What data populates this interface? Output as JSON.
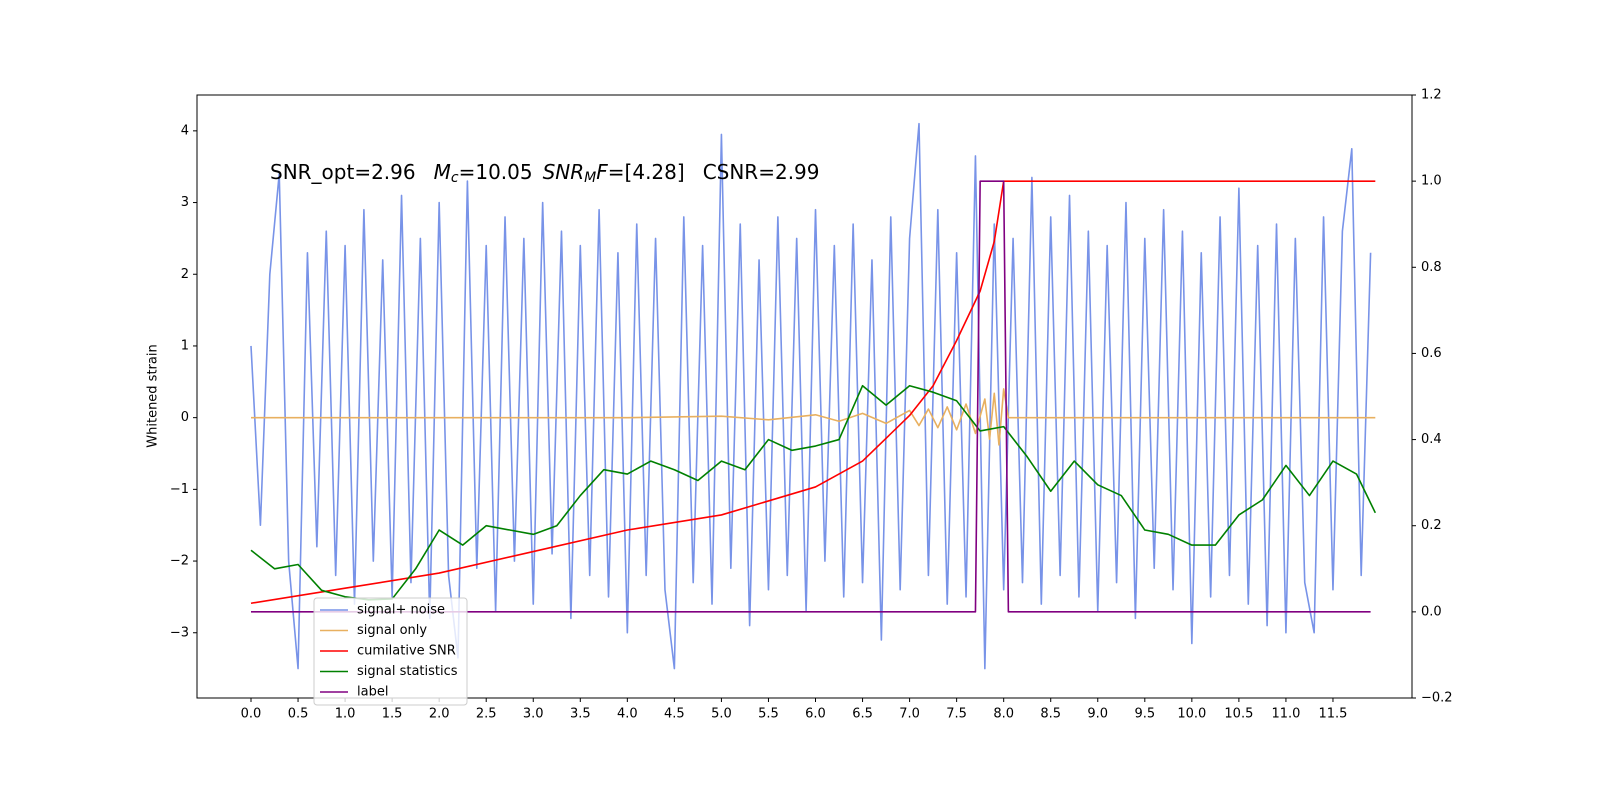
{
  "chart_data": {
    "type": "line",
    "annotation_parts": [
      "SNR_opt=2.96",
      "M",
      "c",
      "=10.05",
      "SNR",
      "M",
      "F",
      "=[4.28]",
      "CSNR=2.99"
    ],
    "ylabel": "Whitened strain",
    "xlim": [
      -0.574,
      12.34
    ],
    "xticks": [
      {
        "value": 0,
        "label": "0.0"
      },
      {
        "value": 0.5,
        "label": "0.5"
      },
      {
        "value": 1,
        "label": "1.0"
      },
      {
        "value": 1.5,
        "label": "1.5"
      },
      {
        "value": 2,
        "label": "2.0"
      },
      {
        "value": 2.5,
        "label": "2.5"
      },
      {
        "value": 3,
        "label": "3.0"
      },
      {
        "value": 3.5,
        "label": "3.5"
      },
      {
        "value": 4,
        "label": "4.0"
      },
      {
        "value": 4.5,
        "label": "4.5"
      },
      {
        "value": 5,
        "label": "5.0"
      },
      {
        "value": 5.5,
        "label": "5.5"
      },
      {
        "value": 6,
        "label": "6.0"
      },
      {
        "value": 6.5,
        "label": "6.5"
      },
      {
        "value": 7,
        "label": "7.0"
      },
      {
        "value": 7.5,
        "label": "7.5"
      },
      {
        "value": 8,
        "label": "8.0"
      },
      {
        "value": 8.5,
        "label": "8.5"
      },
      {
        "value": 9,
        "label": "9.0"
      },
      {
        "value": 9.5,
        "label": "9.5"
      },
      {
        "value": 10,
        "label": "10.0"
      },
      {
        "value": 10.5,
        "label": "10.5"
      },
      {
        "value": 11,
        "label": "11.0"
      },
      {
        "value": 11.5,
        "label": "11.5"
      }
    ],
    "ylim": [
      -3.91,
      4.5
    ],
    "yticks": [
      {
        "value": -3,
        "label": "−3"
      },
      {
        "value": -2,
        "label": "−2"
      },
      {
        "value": -1,
        "label": "−1"
      },
      0,
      1,
      2,
      3,
      4
    ],
    "y2lim": [
      -0.2,
      1.2
    ],
    "y2ticks": [
      {
        "value": -0.2,
        "label": "−0.2"
      },
      {
        "value": 0,
        "label": "0.0"
      },
      {
        "value": 0.2,
        "label": "0.2"
      },
      {
        "value": 0.4,
        "label": "0.4"
      },
      {
        "value": 0.6,
        "label": "0.6"
      },
      {
        "value": 0.8,
        "label": "0.8"
      },
      {
        "value": 1.0,
        "label": "1.0"
      },
      {
        "value": 1.2,
        "label": "1.2"
      }
    ],
    "legend": "lower left",
    "series": [
      {
        "name": "signal+ noise",
        "color": "#7893e8",
        "x": [
          0,
          0.1,
          0.2,
          0.3,
          0.4,
          0.5,
          0.6,
          0.7,
          0.8,
          0.9,
          1,
          1.1,
          1.2,
          1.3,
          1.4,
          1.5,
          1.6,
          1.7,
          1.8,
          1.9,
          2,
          2.1,
          2.2,
          2.3,
          2.4,
          2.5,
          2.6,
          2.7,
          2.8,
          2.9,
          3,
          3.1,
          3.2,
          3.3,
          3.4,
          3.5,
          3.6,
          3.7,
          3.8,
          3.9,
          4,
          4.1,
          4.2,
          4.3,
          4.4,
          4.5,
          4.6,
          4.7,
          4.8,
          4.9,
          5,
          5.1,
          5.2,
          5.3,
          5.4,
          5.5,
          5.6,
          5.7,
          5.8,
          5.9,
          6,
          6.1,
          6.2,
          6.3,
          6.4,
          6.5,
          6.6,
          6.7,
          6.8,
          6.9,
          7,
          7.1,
          7.2,
          7.3,
          7.4,
          7.5,
          7.6,
          7.7,
          7.8,
          7.9,
          8,
          8.1,
          8.2,
          8.3,
          8.4,
          8.5,
          8.6,
          8.7,
          8.8,
          8.9,
          9,
          9.1,
          9.2,
          9.3,
          9.4,
          9.5,
          9.6,
          9.7,
          9.8,
          9.9,
          10,
          10.1,
          10.2,
          10.3,
          10.4,
          10.5,
          10.6,
          10.7,
          10.8,
          10.9,
          11,
          11.1,
          11.2,
          11.3,
          11.4,
          11.5,
          11.6,
          11.7,
          11.8,
          11.9
        ],
        "values": [
          1.0,
          -1.5,
          2.0,
          3.4,
          -2.0,
          -3.5,
          2.3,
          -1.8,
          2.6,
          -2.2,
          2.4,
          -2.6,
          2.9,
          -2.0,
          2.2,
          -2.5,
          3.1,
          -2.3,
          2.5,
          -2.8,
          3.0,
          -2.2,
          -3.35,
          3.3,
          -2.1,
          2.4,
          -2.7,
          2.8,
          -2.0,
          2.5,
          -2.6,
          3.0,
          -1.9,
          2.6,
          -2.8,
          2.4,
          -2.2,
          2.9,
          -2.5,
          2.3,
          -3.0,
          2.7,
          -2.2,
          2.5,
          -2.4,
          -3.5,
          2.8,
          -2.3,
          2.4,
          -2.6,
          3.95,
          -2.1,
          2.7,
          -2.9,
          2.2,
          -2.4,
          2.8,
          -2.2,
          2.5,
          -2.7,
          2.9,
          -2.0,
          2.4,
          -2.5,
          2.7,
          -2.3,
          2.2,
          -3.1,
          2.8,
          -2.4,
          2.5,
          4.1,
          -2.2,
          2.9,
          -2.6,
          2.3,
          -2.5,
          3.65,
          -3.5,
          2.7,
          -2.4,
          2.5,
          -2.3,
          3.35,
          -2.6,
          2.8,
          -2.2,
          3.1,
          -2.5,
          2.6,
          -2.7,
          2.4,
          -2.3,
          3.0,
          -2.8,
          2.5,
          -2.1,
          2.9,
          -2.4,
          2.6,
          -3.15,
          2.3,
          -2.5,
          2.8,
          -2.2,
          3.2,
          -2.6,
          2.4,
          -2.9,
          2.7,
          -3.0,
          2.5,
          -2.3,
          -3.0,
          2.8,
          -2.4,
          2.6,
          3.75,
          -2.2,
          2.3
        ]
      },
      {
        "name": "signal only",
        "color": "#e8b060",
        "x": [
          0,
          1,
          2,
          3,
          4,
          5,
          5.5,
          6,
          6.25,
          6.5,
          6.75,
          7,
          7.1,
          7.2,
          7.3,
          7.4,
          7.5,
          7.6,
          7.7,
          7.8,
          7.85,
          7.9,
          7.95,
          8.0,
          8.05,
          9,
          10,
          11,
          11.95
        ],
        "values": [
          0,
          0,
          0,
          0,
          0,
          0.02,
          -0.03,
          0.04,
          -0.05,
          0.06,
          -0.08,
          0.1,
          -0.11,
          0.12,
          -0.14,
          0.15,
          -0.17,
          0.19,
          -0.22,
          0.26,
          -0.3,
          0.34,
          -0.38,
          0.4,
          0,
          0,
          0,
          0,
          0
        ]
      },
      {
        "name": "cumilative SNR",
        "color": "#ff0000",
        "axis": "y2",
        "x": [
          0,
          1,
          2,
          3,
          4,
          5,
          6,
          6.5,
          7,
          7.25,
          7.5,
          7.75,
          7.9,
          8.0,
          11.95
        ],
        "values": [
          0.02,
          0.055,
          0.09,
          0.14,
          0.19,
          0.225,
          0.29,
          0.35,
          0.456,
          0.525,
          0.63,
          0.745,
          0.86,
          1.0,
          1.0
        ]
      },
      {
        "name": "signal statistics",
        "color": "#008000",
        "axis": "y2",
        "x": [
          0,
          0.25,
          0.5,
          0.75,
          1,
          1.25,
          1.5,
          1.75,
          2,
          2.25,
          2.5,
          2.75,
          3,
          3.25,
          3.5,
          3.75,
          4,
          4.25,
          4.5,
          4.75,
          5,
          5.25,
          5.5,
          5.75,
          6,
          6.25,
          6.5,
          6.75,
          7,
          7.25,
          7.5,
          7.75,
          8,
          8.25,
          8.5,
          8.75,
          9,
          9.25,
          9.5,
          9.75,
          10,
          10.25,
          10.5,
          10.75,
          11,
          11.25,
          11.5,
          11.75,
          11.95
        ],
        "values": [
          0.143,
          0.1,
          0.11,
          0.05,
          0.035,
          0.028,
          0.03,
          0.1,
          0.19,
          0.155,
          0.2,
          0.19,
          0.18,
          0.2,
          0.27,
          0.33,
          0.32,
          0.35,
          0.33,
          0.305,
          0.35,
          0.33,
          0.4,
          0.375,
          0.385,
          0.4,
          0.525,
          0.48,
          0.525,
          0.51,
          0.49,
          0.42,
          0.43,
          0.36,
          0.28,
          0.35,
          0.295,
          0.27,
          0.19,
          0.18,
          0.155,
          0.155,
          0.225,
          0.26,
          0.34,
          0.27,
          0.35,
          0.32,
          0.23
        ]
      },
      {
        "name": "label",
        "color": "#800080",
        "axis": "y2",
        "x": [
          0,
          7.7,
          7.75,
          8.0,
          8.05,
          11.9
        ],
        "values": [
          0,
          0,
          1,
          1,
          0,
          0
        ]
      }
    ]
  }
}
